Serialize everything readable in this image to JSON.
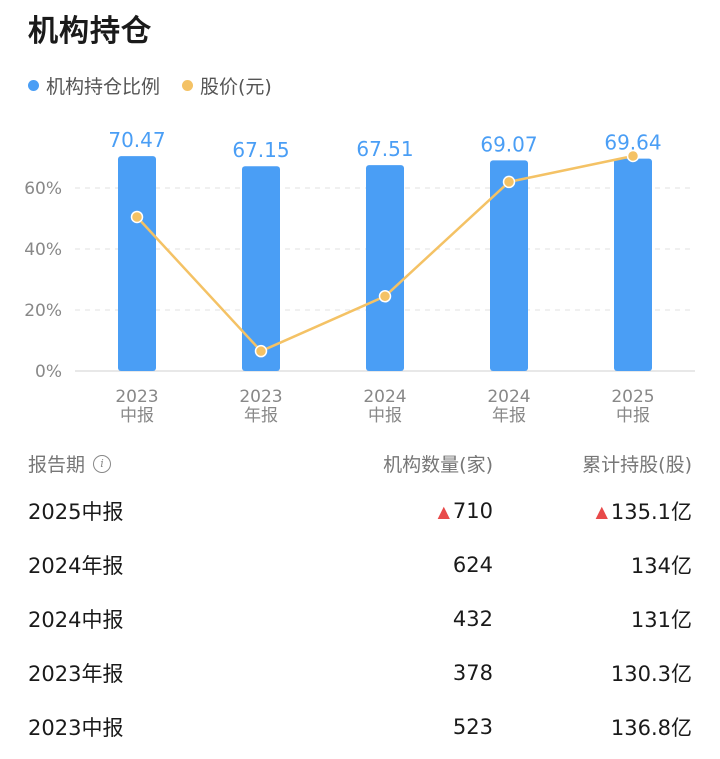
{
  "title": "机构持仓",
  "legend": {
    "bar": {
      "label": "机构持仓比例",
      "color": "#4a9ef5"
    },
    "line": {
      "label": "股价(元)",
      "color": "#f4c265"
    }
  },
  "chart_data": {
    "type": "bar",
    "categories": [
      [
        "2023",
        "中报"
      ],
      [
        "2023",
        "年报"
      ],
      [
        "2024",
        "中报"
      ],
      [
        "2024",
        "年报"
      ],
      [
        "2025",
        "中报"
      ]
    ],
    "series": [
      {
        "name": "机构持仓比例",
        "type": "bar",
        "values": [
          70.47,
          67.15,
          67.51,
          69.07,
          69.64
        ],
        "color": "#4a9ef5"
      },
      {
        "name": "股价(元)",
        "type": "line",
        "values": [
          50.5,
          6.5,
          24.5,
          62,
          70.5
        ],
        "color": "#f4c265"
      }
    ],
    "y_ticks": [
      "0%",
      "20%",
      "40%",
      "60%"
    ],
    "ylim": [
      0,
      75
    ],
    "grid": true,
    "legend": "top-left"
  },
  "table": {
    "headers": {
      "period": "报告期",
      "count": "机构数量(家)",
      "shares": "累计持股(股)"
    },
    "info_icon": "info-icon",
    "rows": [
      {
        "period": "2025中报",
        "count": "710",
        "count_up": true,
        "shares": "135.1亿",
        "shares_up": true
      },
      {
        "period": "2024年报",
        "count": "624",
        "count_up": false,
        "shares": "134亿",
        "shares_up": false
      },
      {
        "period": "2024中报",
        "count": "432",
        "count_up": false,
        "shares": "131亿",
        "shares_up": false
      },
      {
        "period": "2023年报",
        "count": "378",
        "count_up": false,
        "shares": "130.3亿",
        "shares_up": false
      },
      {
        "period": "2023中报",
        "count": "523",
        "count_up": false,
        "shares": "136.8亿",
        "shares_up": false
      }
    ]
  }
}
